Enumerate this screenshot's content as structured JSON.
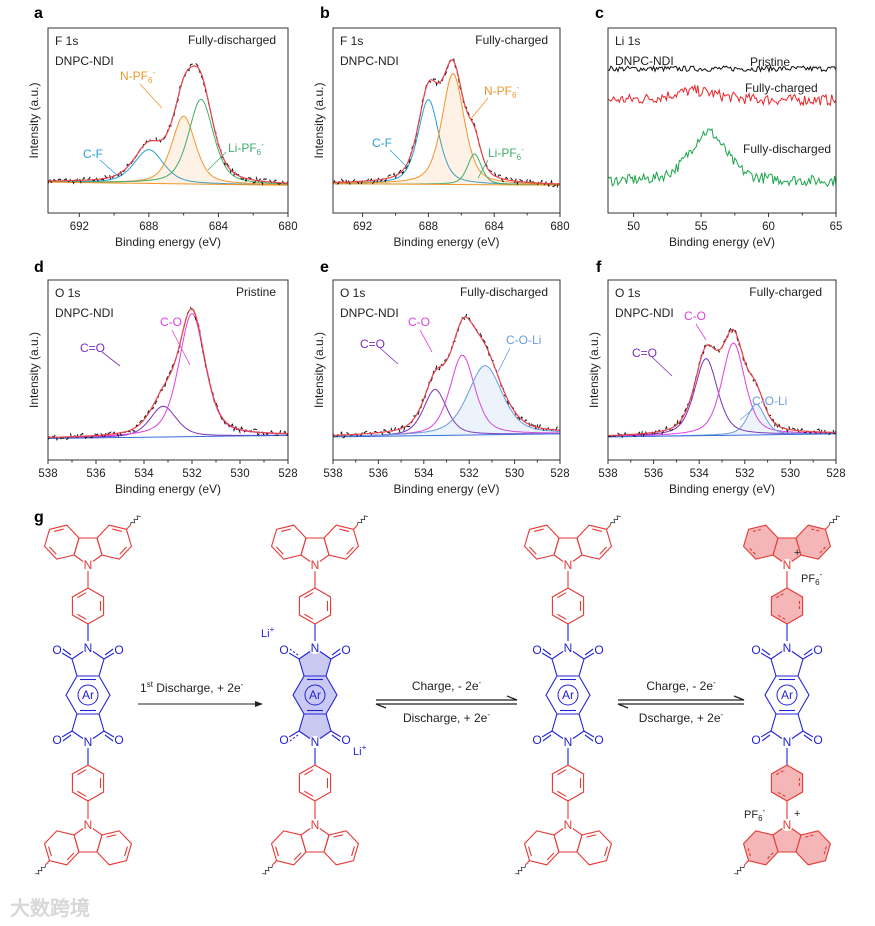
{
  "chart_data": [
    {
      "id": "a",
      "panel_label": "a",
      "type": "line",
      "title": "F 1s",
      "sample": "DNPC-NDI",
      "state": "Fully-discharged",
      "xlabel": "Binding energy (eV)",
      "ylabel": "Intensity (a.u.)",
      "xlim": [
        693.8,
        680
      ],
      "ylim": [
        -0.15,
        1.05
      ],
      "xticks": [
        692,
        688,
        684,
        680
      ],
      "xtick_labels": [
        "692",
        "688",
        "684",
        "680"
      ],
      "baseline": [
        0.05,
        0.03
      ],
      "envelope_color": "#e8434a",
      "peaks": [
        {
          "name": "C-F",
          "center": 688.0,
          "height": 0.22,
          "fwhm": 2.0,
          "color": "#2a9fd6",
          "fill": false
        },
        {
          "name": "N-PF",
          "sub": "6",
          "sup": "-",
          "center": 686.0,
          "height": 0.44,
          "fwhm": 1.6,
          "color": "#f0962a",
          "fill": true
        },
        {
          "name": "Li-PF",
          "sub": "6",
          "sup": "-",
          "center": 685.0,
          "height": 0.55,
          "fwhm": 1.7,
          "color": "#3fae6b",
          "fill": false
        }
      ]
    },
    {
      "id": "b",
      "panel_label": "b",
      "type": "line",
      "title": "F 1s",
      "sample": "DNPC-NDI",
      "state": "Fully-charged",
      "xlabel": "Binding energy (eV)",
      "ylabel": "Intensity (a.u.)",
      "xlim": [
        693.8,
        680
      ],
      "ylim": [
        -0.15,
        1.05
      ],
      "xticks": [
        692,
        688,
        684,
        680
      ],
      "xtick_labels": [
        "692",
        "688",
        "684",
        "680"
      ],
      "baseline": [
        0.04,
        0.03
      ],
      "envelope_color": "#e8434a",
      "peaks": [
        {
          "name": "C-F",
          "center": 688.0,
          "height": 0.55,
          "fwhm": 1.5,
          "color": "#2a9fd6",
          "fill": false
        },
        {
          "name": "N-PF",
          "sub": "6",
          "sup": "-",
          "center": 686.5,
          "height": 0.72,
          "fwhm": 1.6,
          "color": "#f0962a",
          "fill": true
        },
        {
          "name": "Li-PF",
          "sub": "6",
          "sup": "-",
          "center": 685.2,
          "height": 0.2,
          "fwhm": 1.0,
          "color": "#3fae6b",
          "fill": false
        }
      ]
    },
    {
      "id": "c",
      "panel_label": "c",
      "type": "line",
      "title": "Li 1s",
      "sample": "DNPC-NDI",
      "xlabel": "Binding energy (eV)",
      "ylabel": "",
      "xlim": [
        48.1,
        65
      ],
      "ylim": [
        0,
        1
      ],
      "xticks": [
        50,
        55,
        60,
        65
      ],
      "xtick_labels": [
        "50",
        "55",
        "60",
        "65"
      ],
      "series": [
        {
          "name": "Pristine",
          "level": 0.78,
          "color": "#111111",
          "peak_center": 55,
          "peak_height": 0.0,
          "peak_fwhm": 3
        },
        {
          "name": "Fully-charged",
          "level": 0.61,
          "color": "#e8262b",
          "peak_center": 54.5,
          "peak_height": 0.05,
          "peak_fwhm": 4
        },
        {
          "name": "Fully-discharged",
          "level": 0.17,
          "color": "#1aa64a",
          "peak_center": 55.5,
          "peak_height": 0.27,
          "peak_fwhm": 3.2
        }
      ]
    },
    {
      "id": "d",
      "panel_label": "d",
      "type": "line",
      "title": "O 1s",
      "sample": "DNPC-NDI",
      "state": "Pristine",
      "xlabel": "Binding energy (eV)",
      "ylabel": "Intensity (a.u.)",
      "xlim": [
        538,
        528
      ],
      "ylim": [
        -0.12,
        1.05
      ],
      "xticks": [
        538,
        536,
        534,
        532,
        530,
        528
      ],
      "xtick_labels": [
        "538",
        "536",
        "534",
        "532",
        "530",
        "528"
      ],
      "baseline": [
        0.02,
        0.04
      ],
      "envelope_color": "#e8434a",
      "peaks": [
        {
          "name": "C=O",
          "center": 533.2,
          "height": 0.2,
          "fwhm": 1.3,
          "color": "#7b2fbe",
          "fill": false
        },
        {
          "name": "C-O",
          "center": 532.0,
          "height": 0.8,
          "fwhm": 1.3,
          "color": "#e040e0",
          "fill": false
        }
      ]
    },
    {
      "id": "e",
      "panel_label": "e",
      "type": "line",
      "title": "O 1s",
      "sample": "DNPC-NDI",
      "state": "Fully-discharged",
      "xlabel": "Binding energy (eV)",
      "ylabel": "Intensity (a.u.)",
      "xlim": [
        538,
        528
      ],
      "ylim": [
        -0.12,
        1.05
      ],
      "xticks": [
        538,
        536,
        534,
        532,
        530,
        528
      ],
      "xtick_labels": [
        "538",
        "536",
        "534",
        "532",
        "530",
        "528"
      ],
      "baseline": [
        0.03,
        0.05
      ],
      "envelope_color": "#e8434a",
      "peaks": [
        {
          "name": "C=O",
          "center": 533.5,
          "height": 0.3,
          "fwhm": 1.2,
          "color": "#7b2fbe",
          "fill": false
        },
        {
          "name": "C-O",
          "center": 532.3,
          "height": 0.52,
          "fwhm": 1.3,
          "color": "#e040e0",
          "fill": false
        },
        {
          "name": "C-O-Li",
          "center": 531.3,
          "height": 0.45,
          "fwhm": 1.8,
          "color": "#6a9be0",
          "fill": true
        }
      ]
    },
    {
      "id": "f",
      "panel_label": "f",
      "type": "line",
      "title": "O 1s",
      "sample": "DNPC-NDI",
      "state": "Fully-charged",
      "xlabel": "Binding energy (eV)",
      "ylabel": "Intensity (a.u.)",
      "xlim": [
        538,
        528
      ],
      "ylim": [
        -0.12,
        1.05
      ],
      "xticks": [
        538,
        536,
        534,
        532,
        530,
        528
      ],
      "xtick_labels": [
        "538",
        "536",
        "534",
        "532",
        "530",
        "528"
      ],
      "baseline": [
        0.03,
        0.05
      ],
      "envelope_color": "#e8434a",
      "peaks": [
        {
          "name": "C=O",
          "center": 533.7,
          "height": 0.5,
          "fwhm": 1.2,
          "color": "#7b2fbe",
          "fill": false
        },
        {
          "name": "C-O",
          "center": 532.5,
          "height": 0.6,
          "fwhm": 1.2,
          "color": "#e040e0",
          "fill": false
        },
        {
          "name": "C-O-Li",
          "center": 531.5,
          "height": 0.2,
          "fwhm": 0.9,
          "color": "#6a9be0",
          "fill": true
        }
      ]
    }
  ],
  "scheme": {
    "panel_label": "g",
    "atoms": {
      "N": "N",
      "O": "O",
      "Ar": "Ar",
      "plus": "+"
    },
    "colors": {
      "donor": "#e53935",
      "acceptor": "#2323d6",
      "acceptor_fill": "#c9c9f2",
      "donor_fill": "#f4b6b6"
    },
    "step1": {
      "pre": "1",
      "sup": "st",
      "text": " Discharge, + 2e",
      "sup2": "-"
    },
    "step2": {
      "forward": {
        "text": "Charge, - 2e",
        "sup": "-"
      },
      "reverse": {
        "text": "Discharge, + 2e",
        "sup": "-"
      }
    },
    "step3": {
      "forward": {
        "text": "Charge, - 2e",
        "sup": "-"
      },
      "reverse": {
        "text": "Dscharge, + 2e",
        "sup": "-"
      }
    },
    "li_ion": {
      "text": "Li",
      "sup": "+"
    },
    "pf6_ion": {
      "text": "PF",
      "sub": "6",
      "sup": "-"
    }
  },
  "watermark": "大数跨境"
}
